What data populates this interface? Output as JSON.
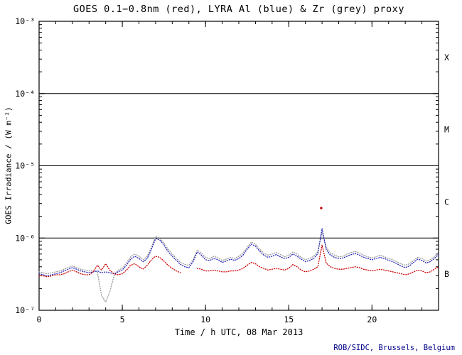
{
  "footer": {
    "credit": "ROB/SIDC, Brussels, Belgium"
  },
  "colors": {
    "credit": "#00008b",
    "axis": "#000000",
    "background": "#ffffff"
  },
  "chart_data": {
    "type": "scatter",
    "title": "GOES 0.1−0.8nm (red), LYRA Al (blue) & Zr (grey) proxy",
    "xlabel": "Time / h UTC, 08 Mar 2013",
    "ylabel": "GOES Irradiance / (W m⁻²)",
    "x_range": [
      0,
      24
    ],
    "x_major_ticks": [
      0,
      5,
      10,
      15,
      20
    ],
    "x_minor_step": 1,
    "y_scale_type": "log",
    "y_range": [
      1e-07,
      0.001
    ],
    "y_ticks": [
      {
        "exp": -7,
        "label": "10⁻⁷"
      },
      {
        "exp": -6,
        "label": "10⁻⁶"
      },
      {
        "exp": -5,
        "label": "10⁻⁵"
      },
      {
        "exp": -4,
        "label": "10⁻⁴"
      },
      {
        "exp": -3,
        "label": "10⁻³"
      }
    ],
    "reference_lines": [
      1e-06,
      1e-05,
      0.0001
    ],
    "flare_classes": [
      {
        "label": "X",
        "band": [
          0.0001,
          0.001
        ]
      },
      {
        "label": "M",
        "band": [
          1e-05,
          0.0001
        ]
      },
      {
        "label": "C",
        "band": [
          1e-06,
          1e-05
        ]
      },
      {
        "label": "B",
        "band": [
          1e-07,
          1e-06
        ]
      }
    ],
    "grid": false,
    "legend": "encoded in title colors",
    "x_start": 0,
    "x_step": 0.25,
    "value_unit": 1e-07,
    "series": [
      {
        "id": "lyra-zr",
        "name": "LYRA Zr proxy",
        "color": "#999999",
        "values": [
          3.4,
          3.3,
          3.2,
          3.3,
          3.4,
          3.5,
          3.7,
          3.9,
          4.1,
          3.9,
          3.7,
          3.6,
          3.5,
          3.6,
          3.4,
          1.6,
          1.3,
          1.8,
          3.0,
          3.6,
          3.8,
          4.5,
          5.5,
          6.0,
          5.6,
          5.0,
          5.6,
          7.5,
          10.5,
          10.0,
          8.5,
          7.0,
          6.0,
          5.2,
          4.6,
          4.3,
          4.2,
          5.0,
          6.8,
          6.2,
          5.4,
          5.2,
          5.6,
          5.3,
          4.9,
          5.1,
          5.4,
          5.2,
          5.6,
          6.2,
          7.4,
          8.8,
          8.2,
          7.0,
          6.2,
          5.8,
          6.0,
          6.3,
          5.9,
          5.5,
          5.8,
          6.4,
          6.0,
          5.4,
          5.0,
          5.2,
          5.6,
          6.5,
          12.0,
          7.5,
          6.2,
          5.8,
          5.5,
          5.6,
          6.0,
          6.3,
          6.5,
          6.2,
          5.8,
          5.5,
          5.3,
          5.5,
          5.8,
          5.5,
          5.2,
          5.0,
          4.7,
          4.4,
          4.2,
          4.4,
          4.9,
          5.4,
          5.2,
          4.8,
          5.0,
          5.5,
          6.3
        ]
      },
      {
        "id": "lyra-al",
        "name": "LYRA Al channel",
        "color": "#2626bb",
        "values": [
          3.2,
          3.1,
          3.0,
          3.1,
          3.2,
          3.3,
          3.5,
          3.7,
          3.9,
          3.7,
          3.5,
          3.4,
          3.3,
          3.4,
          3.5,
          3.3,
          3.4,
          3.3,
          3.2,
          3.4,
          3.6,
          4.2,
          5.1,
          5.6,
          5.2,
          4.7,
          5.2,
          7.0,
          9.8,
          9.4,
          8.0,
          6.5,
          5.6,
          4.9,
          4.3,
          4.0,
          3.9,
          4.7,
          6.4,
          5.8,
          5.0,
          4.9,
          5.2,
          5.0,
          4.6,
          4.8,
          5.1,
          4.9,
          5.2,
          5.8,
          7.0,
          8.2,
          7.7,
          6.6,
          5.8,
          5.4,
          5.6,
          5.9,
          5.5,
          5.2,
          5.4,
          6.0,
          5.6,
          5.1,
          4.7,
          4.9,
          5.2,
          6.1,
          13.5,
          7.0,
          5.8,
          5.4,
          5.2,
          5.3,
          5.6,
          5.9,
          6.1,
          5.8,
          5.4,
          5.2,
          5.0,
          5.2,
          5.4,
          5.2,
          4.9,
          4.7,
          4.4,
          4.1,
          3.9,
          4.1,
          4.6,
          5.1,
          4.9,
          4.5,
          4.7,
          5.2,
          5.9
        ]
      },
      {
        "id": "goes",
        "name": "GOES 0.1–0.8 nm",
        "color": "#cc0000",
        "values": [
          3.0,
          3.0,
          2.9,
          3.0,
          3.1,
          3.1,
          3.2,
          3.4,
          3.6,
          3.4,
          3.2,
          3.1,
          3.1,
          3.4,
          4.2,
          3.6,
          4.4,
          3.6,
          3.2,
          3.1,
          3.2,
          3.6,
          4.2,
          4.4,
          4.0,
          3.7,
          4.2,
          5.0,
          5.6,
          5.4,
          4.8,
          4.2,
          3.8,
          3.5,
          3.3,
          null,
          null,
          null,
          3.8,
          3.7,
          3.5,
          3.5,
          3.6,
          3.5,
          3.4,
          3.4,
          3.5,
          3.5,
          3.6,
          3.8,
          4.2,
          4.6,
          4.4,
          4.0,
          3.8,
          3.6,
          3.7,
          3.8,
          3.7,
          3.6,
          3.8,
          4.3,
          4.0,
          3.6,
          3.4,
          3.5,
          3.7,
          4.0,
          8.0,
          4.5,
          4.0,
          3.8,
          3.7,
          3.7,
          3.8,
          3.9,
          4.0,
          3.9,
          3.7,
          3.6,
          3.5,
          3.6,
          3.7,
          3.6,
          3.5,
          3.4,
          3.3,
          3.2,
          3.1,
          3.2,
          3.4,
          3.6,
          3.5,
          3.3,
          3.4,
          3.7,
          4.0
        ]
      }
    ],
    "outliers": [
      {
        "series": "goes",
        "color": "#cc0000",
        "x": 16.95,
        "value": 26
      }
    ]
  }
}
